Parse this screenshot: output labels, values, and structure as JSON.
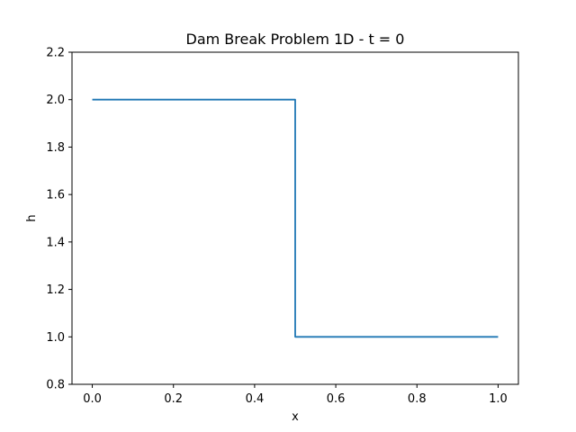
{
  "chart_data": {
    "type": "line",
    "title": "Dam Break Problem 1D - t = 0",
    "xlabel": "x",
    "ylabel": "h",
    "xlim": [
      -0.05,
      1.05
    ],
    "ylim": [
      0.8,
      2.2
    ],
    "grid": false,
    "x_ticks": [
      "0.0",
      "0.2",
      "0.4",
      "0.6",
      "0.8",
      "1.0"
    ],
    "y_ticks": [
      "0.8",
      "1.0",
      "1.2",
      "1.4",
      "1.6",
      "1.8",
      "2.0",
      "2.2"
    ],
    "series": [
      {
        "color": "#1f77b4",
        "x": [
          0.0,
          0.5,
          0.5,
          1.0
        ],
        "y": [
          2.0,
          2.0,
          1.0,
          1.0
        ]
      }
    ]
  }
}
